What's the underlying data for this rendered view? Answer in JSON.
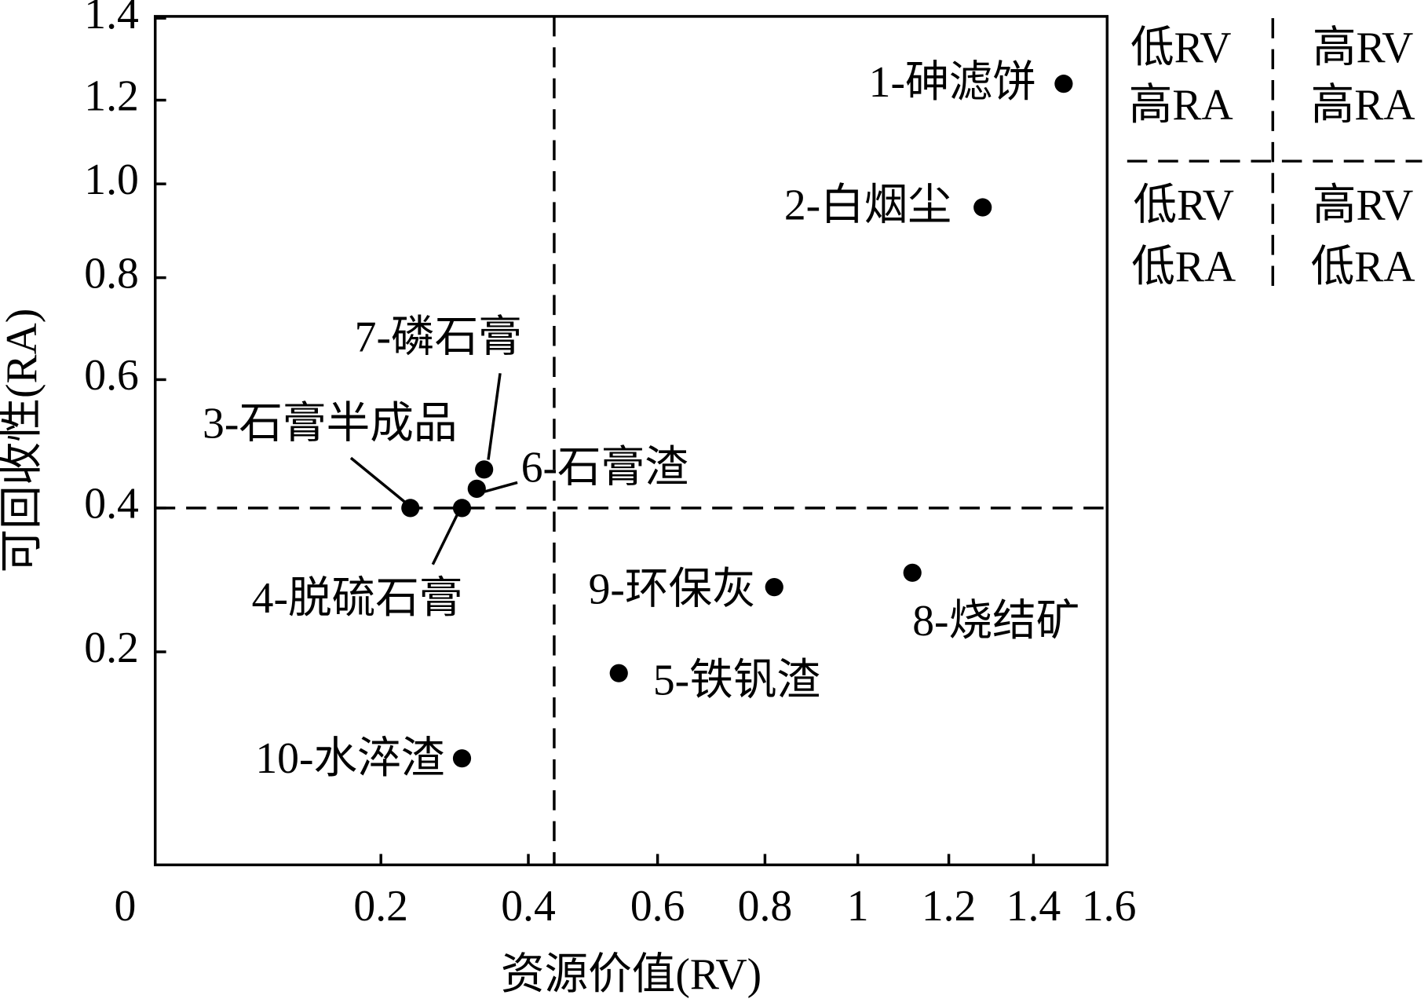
{
  "chart_data": {
    "type": "scatter",
    "x_label": "资源价值(RV)",
    "y_label": "可回收性(RA)",
    "xlim": [
      0,
      1.6
    ],
    "ylim": [
      0,
      1.4
    ],
    "xticks": [
      0,
      0.2,
      0.4,
      0.6,
      0.8,
      1,
      1.2,
      1.4,
      1.6
    ],
    "yticks": [
      0.2,
      0.4,
      0.6,
      0.8,
      {
        "value": 1.0,
        "label": "1.0"
      },
      1.2,
      1.4
    ],
    "color": "#000000",
    "x_divider": 0.44,
    "y_divider": 0.4,
    "labels": [
      "1-砷滤饼",
      "2-白烟尘",
      "3-石膏半成品",
      "4-脱硫石膏",
      "5-铁钒渣",
      "6-石膏渣",
      "7-磷石膏",
      "8-烧结矿",
      "9-环保灰",
      "10-水淬渣"
    ],
    "x": [
      1.48,
      1.28,
      0.24,
      0.31,
      0.54,
      0.33,
      0.34,
      1.12,
      0.82,
      0.31
    ],
    "values": [
      1.24,
      0.95,
      0.4,
      0.4,
      0.18,
      0.43,
      0.46,
      0.31,
      0.29,
      0.1
    ],
    "quadrant_legend": {
      "top_left": [
        "低RV",
        "高RA"
      ],
      "top_right": [
        "高RV",
        "高RA"
      ],
      "bottom_left": [
        "低RV",
        "低RA"
      ],
      "bottom_right": [
        "高RV",
        "低RA"
      ]
    }
  }
}
